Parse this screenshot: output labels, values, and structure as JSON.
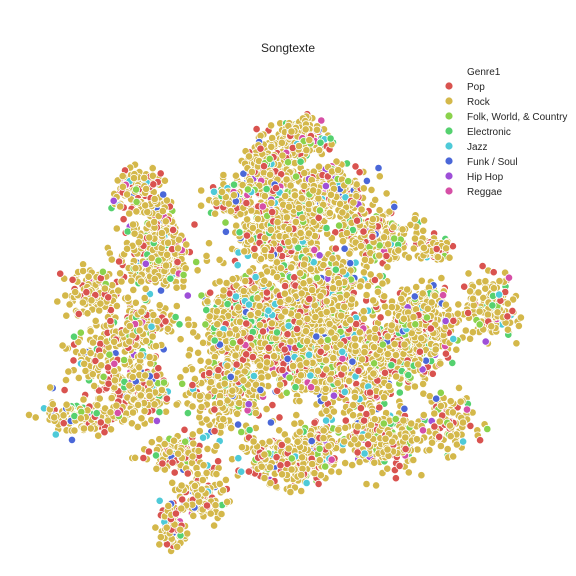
{
  "chart_data": {
    "type": "scatter",
    "title": "Songtexte",
    "xlabel": "",
    "ylabel": "",
    "axes_visible": false,
    "grid": false,
    "legend": {
      "title": "Genre1",
      "placement": "top-right",
      "entries": [
        {
          "name": "Pop",
          "color": "#d9534f"
        },
        {
          "name": "Rock",
          "color": "#d4b84a"
        },
        {
          "name": "Folk, World, & Country",
          "color": "#8bd24c"
        },
        {
          "name": "Electronic",
          "color": "#55d16f"
        },
        {
          "name": "Jazz",
          "color": "#4ecad8"
        },
        {
          "name": "Funk / Soul",
          "color": "#4a67d8"
        },
        {
          "name": "Hip Hop",
          "color": "#9e4fd8"
        },
        {
          "name": "Reggae",
          "color": "#d64fa6"
        }
      ]
    },
    "clusters": [
      {
        "cx": 0.06,
        "cy": 0.8,
        "sx": 0.045,
        "sy": 0.035,
        "n": 320
      },
      {
        "cx": -0.08,
        "cy": 0.66,
        "sx": 0.05,
        "sy": 0.05,
        "n": 280
      },
      {
        "cx": -0.02,
        "cy": 0.4,
        "sx": 0.085,
        "sy": 0.09,
        "n": 520
      },
      {
        "cx": -0.18,
        "cy": 0.0,
        "sx": 0.075,
        "sy": 0.085,
        "n": 460
      },
      {
        "cx": -0.27,
        "cy": -0.1,
        "sx": 0.03,
        "sy": 0.03,
        "n": 80
      },
      {
        "cx": 0.02,
        "cy": -0.15,
        "sx": 0.1,
        "sy": 0.075,
        "n": 480
      },
      {
        "cx": 0.25,
        "cy": -0.23,
        "sx": 0.12,
        "sy": 0.11,
        "n": 560
      },
      {
        "cx": 0.52,
        "cy": -0.12,
        "sx": 0.075,
        "sy": 0.08,
        "n": 260
      },
      {
        "cx": 0.36,
        "cy": 0.35,
        "sx": 0.08,
        "sy": 0.06,
        "n": 220
      },
      {
        "cx": 0.6,
        "cy": 0.3,
        "sx": 0.03,
        "sy": 0.025,
        "n": 70
      },
      {
        "cx": 0.12,
        "cy": 0.08,
        "sx": 0.1,
        "sy": 0.09,
        "n": 520
      },
      {
        "cx": 0.55,
        "cy": 0.02,
        "sx": 0.065,
        "sy": 0.06,
        "n": 230
      },
      {
        "cx": 0.18,
        "cy": 0.55,
        "sx": 0.07,
        "sy": 0.06,
        "n": 260
      },
      {
        "cx": -0.22,
        "cy": 0.52,
        "sx": 0.045,
        "sy": 0.045,
        "n": 130
      },
      {
        "cx": -0.25,
        "cy": -0.35,
        "sx": 0.08,
        "sy": 0.09,
        "n": 300
      },
      {
        "cx": 0.12,
        "cy": -0.6,
        "sx": 0.06,
        "sy": 0.06,
        "n": 160
      },
      {
        "cx": 0.4,
        "cy": -0.55,
        "sx": 0.075,
        "sy": 0.07,
        "n": 260
      },
      {
        "cx": 0.65,
        "cy": -0.48,
        "sx": 0.06,
        "sy": 0.06,
        "n": 110
      },
      {
        "cx": -0.02,
        "cy": -0.65,
        "sx": 0.08,
        "sy": 0.06,
        "n": 220
      },
      {
        "cx": -0.45,
        "cy": -0.62,
        "sx": 0.07,
        "sy": 0.04,
        "n": 130
      },
      {
        "cx": -0.35,
        "cy": -0.8,
        "sx": 0.05,
        "sy": 0.05,
        "n": 120
      },
      {
        "cx": -0.47,
        "cy": -0.95,
        "sx": 0.03,
        "sy": 0.05,
        "n": 90
      },
      {
        "cx": -0.6,
        "cy": -0.35,
        "sx": 0.07,
        "sy": 0.06,
        "n": 180
      },
      {
        "cx": -0.75,
        "cy": -0.2,
        "sx": 0.07,
        "sy": 0.08,
        "n": 160
      },
      {
        "cx": -0.6,
        "cy": -0.05,
        "sx": 0.07,
        "sy": 0.07,
        "n": 160
      },
      {
        "cx": -0.8,
        "cy": 0.1,
        "sx": 0.05,
        "sy": 0.05,
        "n": 110
      },
      {
        "cx": -0.55,
        "cy": 0.22,
        "sx": 0.07,
        "sy": 0.06,
        "n": 220
      },
      {
        "cx": -0.55,
        "cy": 0.4,
        "sx": 0.06,
        "sy": 0.06,
        "n": 180
      },
      {
        "cx": -0.62,
        "cy": 0.58,
        "sx": 0.05,
        "sy": 0.05,
        "n": 110
      },
      {
        "cx": -0.82,
        "cy": -0.45,
        "sx": 0.08,
        "sy": 0.04,
        "n": 130
      },
      {
        "cx": 0.82,
        "cy": 0.03,
        "sx": 0.06,
        "sy": 0.07,
        "n": 160
      }
    ],
    "genre_weights": [
      0.14,
      0.7,
      0.05,
      0.04,
      0.02,
      0.025,
      0.01,
      0.015
    ],
    "xlim": [
      -1.1,
      1.1
    ],
    "ylim": [
      -1.1,
      1.1
    ]
  }
}
